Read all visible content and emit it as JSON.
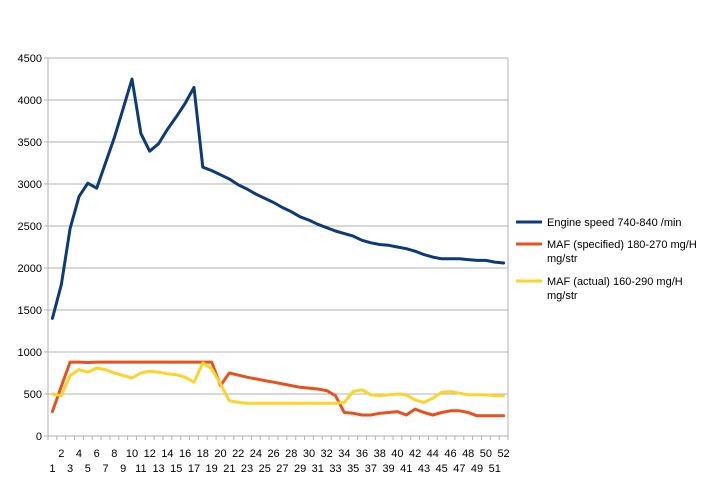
{
  "chart_data": {
    "type": "line",
    "title": "",
    "xlabel": "",
    "ylabel": "",
    "ylim": [
      0,
      4500
    ],
    "y_ticks": [
      0,
      500,
      1000,
      1500,
      2000,
      2500,
      3000,
      3500,
      4000,
      4500
    ],
    "grid": "horizontal",
    "legend_position": "right",
    "x": [
      1,
      2,
      3,
      4,
      5,
      6,
      7,
      8,
      9,
      10,
      11,
      12,
      13,
      14,
      15,
      16,
      17,
      18,
      19,
      20,
      21,
      22,
      23,
      24,
      25,
      26,
      27,
      28,
      29,
      30,
      31,
      32,
      33,
      34,
      35,
      36,
      37,
      38,
      39,
      40,
      41,
      42,
      43,
      44,
      45,
      46,
      47,
      48,
      49,
      50,
      51,
      52
    ],
    "series": [
      {
        "name": "Engine speed 740-840  /min",
        "color": "#0d3b7a",
        "values": [
          1400,
          1800,
          2470,
          2850,
          3010,
          2950,
          3250,
          3550,
          3900,
          4250,
          3600,
          3390,
          3480,
          3650,
          3800,
          3960,
          4150,
          3200,
          3160,
          3110,
          3060,
          2990,
          2940,
          2880,
          2830,
          2780,
          2720,
          2670,
          2610,
          2570,
          2520,
          2480,
          2440,
          2410,
          2380,
          2330,
          2300,
          2280,
          2270,
          2250,
          2230,
          2200,
          2160,
          2130,
          2110,
          2110,
          2110,
          2100,
          2090,
          2090,
          2070,
          2060
        ]
      },
      {
        "name": "MAF (specified) 180-270 mg/H mg/str",
        "color": "#e8521f",
        "values": [
          290,
          590,
          880,
          880,
          875,
          880,
          880,
          880,
          880,
          880,
          880,
          880,
          880,
          880,
          880,
          880,
          880,
          880,
          880,
          600,
          750,
          725,
          700,
          680,
          660,
          640,
          620,
          600,
          580,
          570,
          560,
          540,
          480,
          280,
          270,
          250,
          250,
          270,
          280,
          290,
          250,
          320,
          280,
          250,
          280,
          300,
          300,
          280,
          240,
          240,
          240,
          240
        ]
      },
      {
        "name": "MAF (actual) 160-290 mg/H mg/str",
        "color": "#ffd32a",
        "values": [
          500,
          480,
          720,
          790,
          760,
          810,
          790,
          750,
          720,
          690,
          750,
          770,
          760,
          740,
          730,
          700,
          640,
          870,
          800,
          620,
          420,
          400,
          390,
          390,
          390,
          390,
          390,
          390,
          390,
          390,
          390,
          390,
          390,
          400,
          530,
          550,
          490,
          480,
          490,
          500,
          490,
          430,
          400,
          450,
          520,
          530,
          510,
          490,
          490,
          490,
          480,
          480
        ]
      }
    ]
  }
}
